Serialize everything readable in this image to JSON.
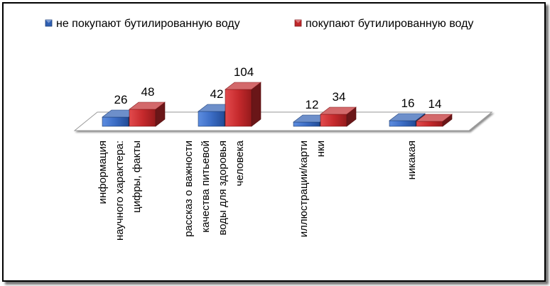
{
  "chart_data": {
    "type": "bar",
    "title": "",
    "xlabel": "",
    "ylabel": "",
    "categories": [
      [
        "информация",
        "научного характера:",
        "цифры, факты"
      ],
      [
        "рассказ о важности",
        "качества питьевой",
        "воды для здоровья",
        "человека"
      ],
      [
        "иллюстрации/карти",
        "нки"
      ],
      [
        "никакая"
      ]
    ],
    "series": [
      {
        "name": "не покупают бутилированную воду",
        "values": [
          26,
          42,
          12,
          16
        ],
        "color": "#2F5FB3"
      },
      {
        "name": "покупают бутилированную воду",
        "values": [
          48,
          104,
          34,
          14
        ],
        "color": "#C0282B"
      }
    ],
    "ylim": [
      0,
      104
    ],
    "legend_position": "top",
    "grid": false,
    "style": "3d-clustered-column"
  }
}
